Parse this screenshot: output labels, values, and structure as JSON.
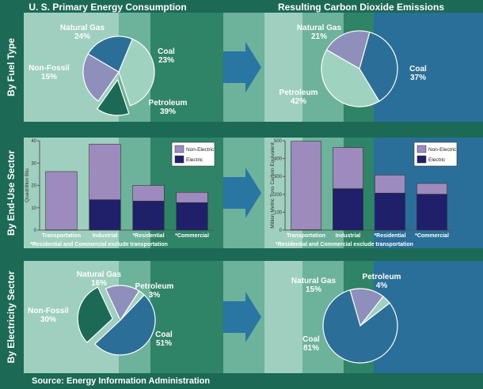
{
  "headers": {
    "left": "U. S. Primary Energy Consumption",
    "right": "Resulting Carbon Dioxide Emissions"
  },
  "row_labels": [
    "By Fuel Type",
    "By End-Use Sector",
    "By Electricity Sector"
  ],
  "source": "Source: Energy Information  Administration",
  "colors": {
    "background": "#1c6a55",
    "panel_light": "#9fd0bf",
    "panel_mid": "#6db29a",
    "panel_teal": "#2f8468",
    "panel_blue": "#2a6f99",
    "natural_gas": "#8e8fbb",
    "coal": "#2b6e98",
    "petroleum": "#9fd2bf",
    "non_fossil": "#1c6a55",
    "non_electric": "#9d8bbd",
    "electric": "#1f1f6a"
  },
  "chart_data": [
    {
      "id": "energy-by-fuel",
      "type": "pie",
      "slices": [
        {
          "label": "Natural Gas",
          "value": 24,
          "pct_text": "24%"
        },
        {
          "label": "Coal",
          "value": 23,
          "pct_text": "23%"
        },
        {
          "label": "Petroleum",
          "value": 39,
          "pct_text": "39%"
        },
        {
          "label": "Non-Fossil",
          "value": 15,
          "pct_text": "15%",
          "exploded": true
        }
      ]
    },
    {
      "id": "co2-by-fuel",
      "type": "pie",
      "slices": [
        {
          "label": "Natural Gas",
          "value": 21,
          "pct_text": "21%"
        },
        {
          "label": "Coal",
          "value": 37,
          "pct_text": "37%"
        },
        {
          "label": "Petroleum",
          "value": 42,
          "pct_text": "42%"
        }
      ]
    },
    {
      "id": "energy-by-sector",
      "type": "bar",
      "stacked": true,
      "ylabel": "Quadrillion Btu",
      "ylim": [
        0,
        40
      ],
      "yticks": [
        0,
        10,
        20,
        30,
        40
      ],
      "categories": [
        "Transportation",
        "Industrial",
        "*Residential",
        "*Commercial"
      ],
      "series": [
        {
          "name": "Electric",
          "values": [
            0.1,
            13.6,
            13.0,
            12.3
          ]
        },
        {
          "name": "Non-Electric",
          "values": [
            26.1,
            24.9,
            7.0,
            4.6
          ]
        }
      ],
      "legend": [
        "Non-Electric",
        "Electric"
      ],
      "footnote": "*Residential and Commercial exclude transportation"
    },
    {
      "id": "co2-by-sector",
      "type": "bar",
      "stacked": true,
      "ylabel": "Million Metric Tons Carbon Equivalent",
      "ylim": [
        0,
        500
      ],
      "yticks": [
        0,
        100,
        200,
        300,
        400,
        500
      ],
      "categories": [
        "Transportation",
        "Industrial",
        "*Residential",
        "*Commercial"
      ],
      "series": [
        {
          "name": "Electric",
          "values": [
            2,
            232,
            207,
            201
          ]
        },
        {
          "name": "Non-Electric",
          "values": [
            495,
            230,
            101,
            60
          ]
        }
      ],
      "legend": [
        "Non-Electric",
        "Electric"
      ],
      "footnote": "*Residential and Commercial exclude transportation"
    },
    {
      "id": "energy-by-electricity",
      "type": "pie",
      "slices": [
        {
          "label": "Natural Gas",
          "value": 16,
          "pct_text": "16%"
        },
        {
          "label": "Petroleum",
          "value": 3,
          "pct_text": "3%"
        },
        {
          "label": "Coal",
          "value": 51,
          "pct_text": "51%"
        },
        {
          "label": "Non-Fossil",
          "value": 30,
          "pct_text": "30%",
          "exploded": true
        }
      ]
    },
    {
      "id": "co2-by-electricity",
      "type": "pie",
      "slices": [
        {
          "label": "Natural Gas",
          "value": 15,
          "pct_text": "15%"
        },
        {
          "label": "Petroleum",
          "value": 4,
          "pct_text": "4%"
        },
        {
          "label": "Coal",
          "value": 81,
          "pct_text": "81%"
        }
      ]
    }
  ]
}
